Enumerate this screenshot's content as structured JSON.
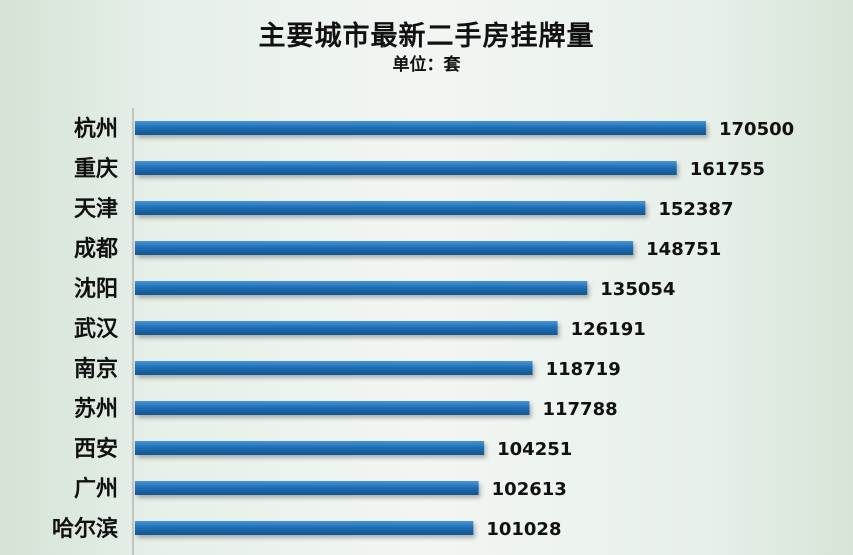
{
  "chart_data": {
    "type": "bar",
    "orientation": "horizontal",
    "title": "主要城市最新二手房挂牌量",
    "subtitle": "单位：套",
    "categories": [
      "杭州",
      "重庆",
      "天津",
      "成都",
      "沈阳",
      "武汉",
      "南京",
      "苏州",
      "西安",
      "广州",
      "哈尔滨"
    ],
    "values": [
      170500,
      161755,
      152387,
      148751,
      135054,
      126191,
      118719,
      117788,
      104251,
      102613,
      101028
    ],
    "bar_color": "#1f6fb6",
    "axis_line_color": "#b5b5b5",
    "grid": false,
    "legend": "none"
  }
}
